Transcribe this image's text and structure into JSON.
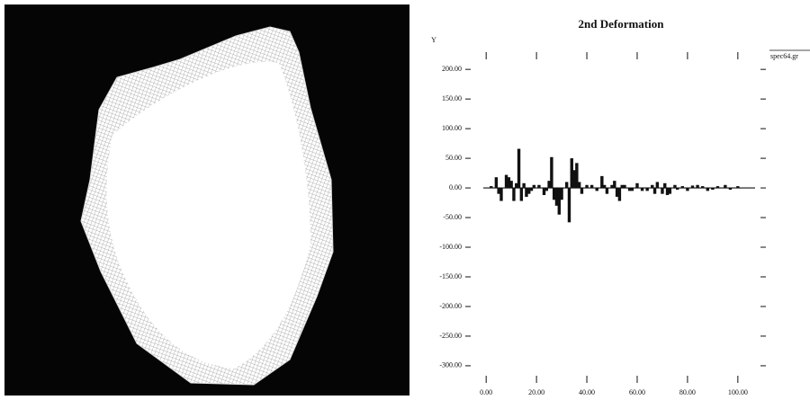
{
  "chart_data": {
    "type": "bar",
    "title": "2nd Deformation",
    "y_label": "Y",
    "x": [
      2,
      4,
      5,
      6,
      8,
      9,
      10,
      11,
      12,
      13,
      14,
      15,
      16,
      17,
      18,
      19,
      21,
      23,
      24,
      25,
      26,
      27,
      28,
      29,
      30,
      32,
      33,
      34,
      35,
      36,
      37,
      38,
      40,
      42,
      44,
      46,
      47,
      48,
      50,
      51,
      52,
      53,
      54,
      55,
      57,
      58,
      60,
      62,
      64,
      66,
      67,
      68,
      70,
      71,
      72,
      73,
      75,
      76,
      78,
      80,
      82,
      84,
      86,
      88,
      90,
      92,
      95,
      97,
      100
    ],
    "series": [
      {
        "name": "spec64.gr",
        "color": "#111111",
        "values": [
          3,
          18,
          -10,
          -22,
          22,
          18,
          12,
          -22,
          8,
          66,
          -22,
          8,
          -15,
          -10,
          -5,
          5,
          5,
          -12,
          -5,
          12,
          52,
          -20,
          -30,
          -45,
          -20,
          10,
          -58,
          50,
          30,
          42,
          10,
          -10,
          5,
          5,
          -5,
          20,
          5,
          -10,
          5,
          12,
          -15,
          -22,
          5,
          5,
          -5,
          -5,
          8,
          -5,
          -5,
          5,
          -10,
          10,
          -10,
          8,
          -12,
          -10,
          5,
          -3,
          3,
          -5,
          4,
          5,
          3,
          -5,
          -3,
          3,
          5,
          -3,
          3
        ]
      }
    ],
    "xlim": [
      -4,
      109
    ],
    "ylim": [
      -335,
      223
    ],
    "xticks": [
      {
        "value": 0,
        "label": "0.00"
      },
      {
        "value": 20,
        "label": "20.00"
      },
      {
        "value": 40,
        "label": "40.00"
      },
      {
        "value": 60,
        "label": "60.00"
      },
      {
        "value": 80,
        "label": "80.00"
      },
      {
        "value": 100,
        "label": "100.00"
      }
    ],
    "yticks": [
      {
        "value": 200,
        "label": "200.00"
      },
      {
        "value": 150,
        "label": "150.00"
      },
      {
        "value": 100,
        "label": "100.00"
      },
      {
        "value": 50,
        "label": "50.00"
      },
      {
        "value": 0,
        "label": "0.00"
      },
      {
        "value": -50,
        "label": "-50.00"
      },
      {
        "value": -100,
        "label": "-100.00"
      },
      {
        "value": -150,
        "label": "-150.00"
      },
      {
        "value": -200,
        "label": "-200.00"
      },
      {
        "value": -250,
        "label": "-250.00"
      },
      {
        "value": -300,
        "label": "-300.00"
      }
    ]
  }
}
